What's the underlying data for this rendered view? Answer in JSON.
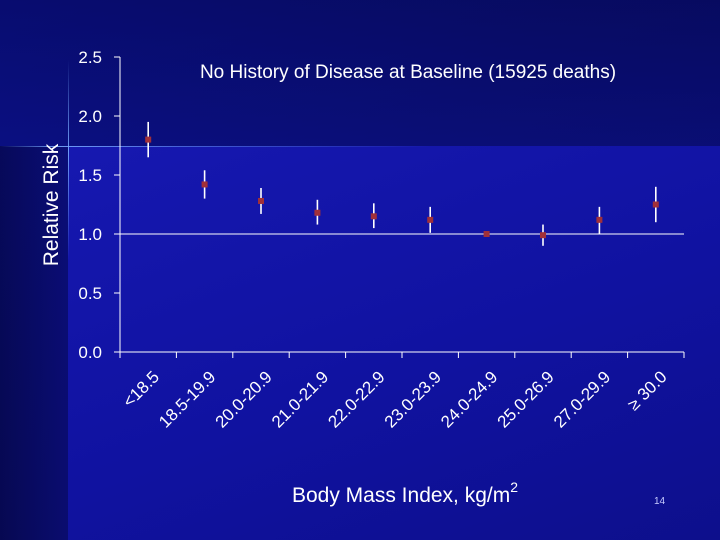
{
  "slide": {
    "number": "14"
  },
  "chart_data": {
    "type": "scatter",
    "title": "No History of Disease at Baseline (15925 deaths)",
    "xlabel": "Body Mass Index, kg/m",
    "xlabel_superscript": "2",
    "ylabel": "Relative Risk",
    "ylim": [
      0,
      2.5
    ],
    "yticks": [
      "0.0",
      "0.5",
      "1.0",
      "1.5",
      "2.0",
      "2.5"
    ],
    "reference_line": 1.0,
    "categories": [
      "<18.5",
      "18.5-19.9",
      "20.0-20.9",
      "21.0-21.9",
      "22.0-22.9",
      "23.0-23.9",
      "24.0-24.9",
      "25.0-26.9",
      "27.0-29.9",
      "≥ 30.0"
    ],
    "series": [
      {
        "name": "Relative Risk",
        "values": [
          1.8,
          1.42,
          1.28,
          1.18,
          1.15,
          1.12,
          1.0,
          0.99,
          1.12,
          1.25
        ],
        "lower": [
          1.65,
          1.3,
          1.17,
          1.08,
          1.05,
          1.01,
          1.0,
          0.9,
          1.0,
          1.1
        ],
        "upper": [
          1.95,
          1.54,
          1.39,
          1.29,
          1.26,
          1.23,
          1.0,
          1.08,
          1.23,
          1.4
        ]
      }
    ],
    "colors": {
      "marker": "#a0303a",
      "errorbar": "#ffffff",
      "axis": "#ffffff",
      "text": "#ffffff"
    }
  }
}
